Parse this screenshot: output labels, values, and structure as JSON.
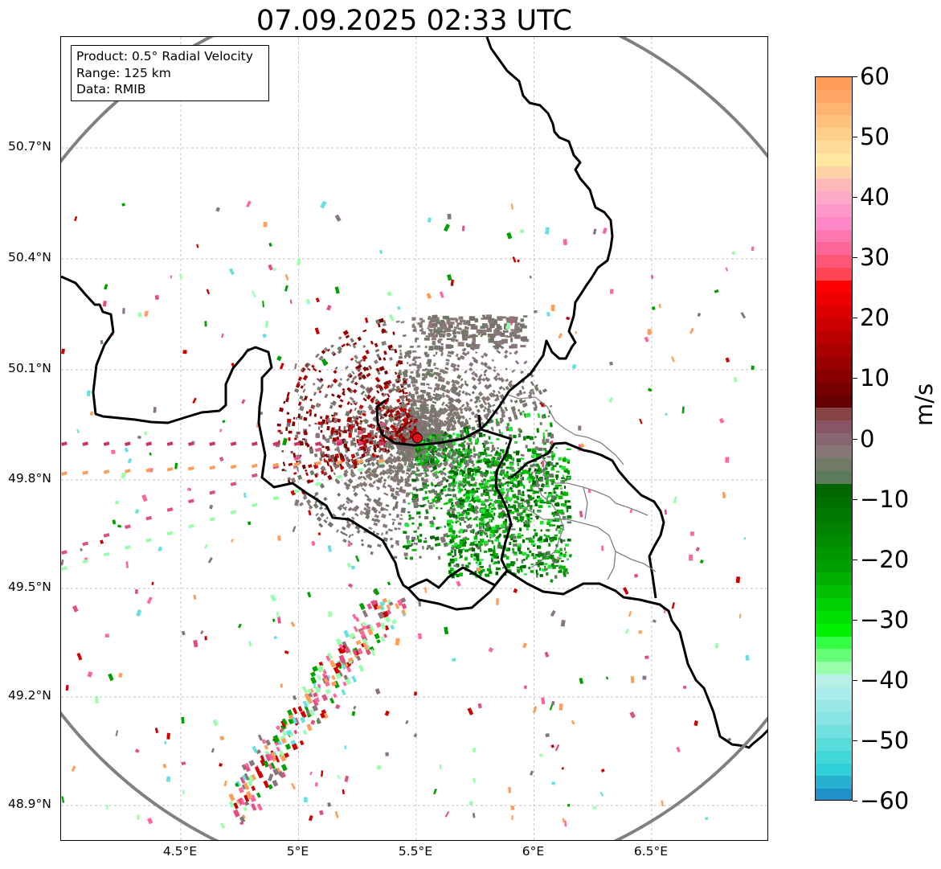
{
  "title": "07.09.2025 02:33 UTC",
  "info": {
    "product": "Product: 0.5° Radial Velocity",
    "range": "Range: 125 km",
    "source": "Data: RMIB"
  },
  "axes": {
    "lat_ticks": [
      "50.7°N",
      "50.4°N",
      "50.1°N",
      "49.8°N",
      "49.5°N",
      "49.2°N",
      "48.9°N"
    ],
    "lon_ticks": [
      "4.5°E",
      "5°E",
      "5.5°E",
      "6°E",
      "6.5°E"
    ],
    "lat_values": [
      50.7,
      50.4,
      50.1,
      49.8,
      49.5,
      49.2,
      48.9
    ],
    "lon_values": [
      4.5,
      5.0,
      5.5,
      6.0,
      6.5
    ],
    "lon_range": [
      4.0,
      7.0
    ],
    "lat_range": [
      48.8,
      51.0
    ],
    "grid": true
  },
  "radar": {
    "lat": 49.914,
    "lon": 5.505,
    "marker_color": "#e0101c"
  },
  "colorbar": {
    "unit": "m/s",
    "ticks": [
      "60",
      "50",
      "40",
      "30",
      "20",
      "10",
      "0",
      "−10",
      "−20",
      "−30",
      "−40",
      "−50",
      "−60"
    ],
    "tick_values": [
      60,
      50,
      40,
      30,
      20,
      10,
      0,
      -10,
      -20,
      -30,
      -40,
      -50,
      -60
    ],
    "range": [
      -60,
      60
    ],
    "colors_top_to_bottom": [
      "#ff9e5a",
      "#ffa866",
      "#ffb572",
      "#ffc27e",
      "#ffcf8c",
      "#ffdb99",
      "#ffe7a0",
      "#ffd2a8",
      "#ffb8b8",
      "#ffaac8",
      "#ff99cc",
      "#ff88c8",
      "#ff77b0",
      "#ff6699",
      "#ff5577",
      "#ff4455",
      "#ff0000",
      "#ee0000",
      "#dd0000",
      "#cc0000",
      "#bb0000",
      "#aa0000",
      "#990000",
      "#880000",
      "#770000",
      "#660000",
      "#884444",
      "#885566",
      "#886672",
      "#887777",
      "#707a66",
      "#5e7a5c",
      "#006600",
      "#006e00",
      "#007800",
      "#008200",
      "#008c00",
      "#009600",
      "#00a000",
      "#00b000",
      "#00c000",
      "#00d000",
      "#00e000",
      "#00f000",
      "#33ff44",
      "#66ff77",
      "#99ffaa",
      "#b8f0e8",
      "#a8ecec",
      "#98e8e8",
      "#88e4e4",
      "#70e0e0",
      "#58dcdc",
      "#40d8d8",
      "#30d0d8",
      "#28b0d0",
      "#1f90c8"
    ]
  }
}
